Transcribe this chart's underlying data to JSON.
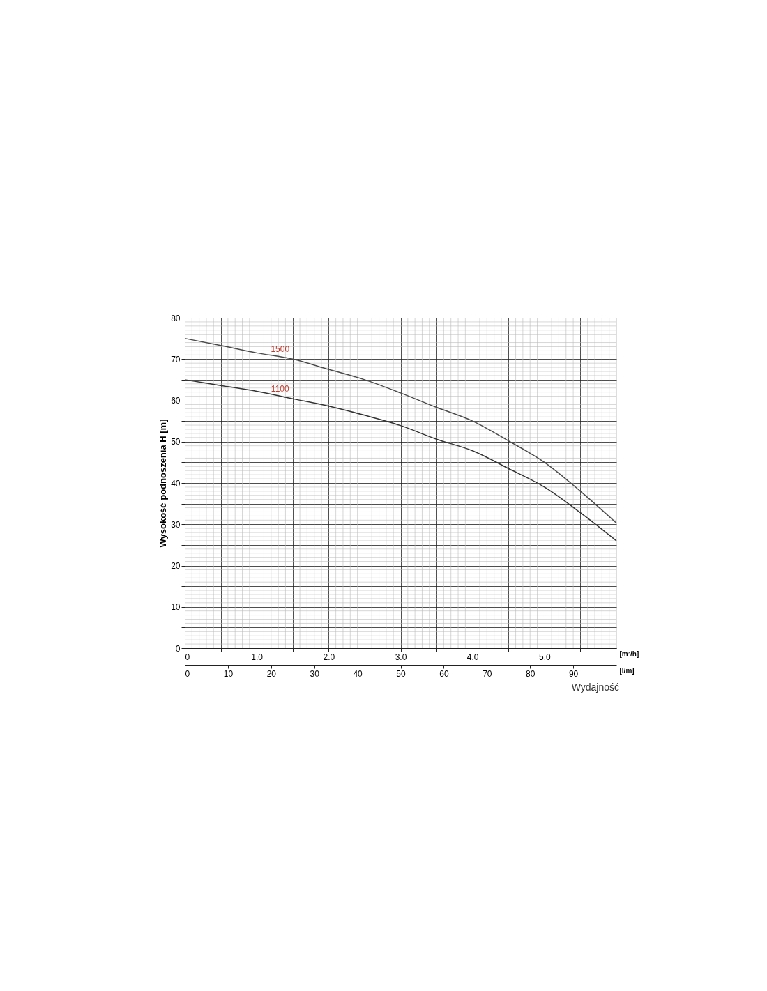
{
  "chart_data": {
    "type": "line",
    "xlabel": "[m³/h]",
    "ylabel": "Wysokość podnoszenia H [m]",
    "x2label": "[l/m]",
    "annotations": [
      "Wydajność"
    ],
    "x": [
      0,
      0.5,
      1.0,
      1.5,
      2.0,
      2.5,
      3.0,
      3.5,
      4.0,
      4.5,
      5.0,
      5.5,
      6.0
    ],
    "series": [
      {
        "name": "1500",
        "color": "#4a4a4a",
        "values": [
          75,
          73.3,
          71.5,
          70.0,
          67.5,
          65,
          61.8,
          58.3,
          55,
          50.2,
          45,
          38,
          30.3
        ]
      },
      {
        "name": "1100",
        "color": "#333333",
        "values": [
          65,
          63.6,
          62.2,
          60.4,
          58.6,
          56.4,
          53.9,
          50.6,
          47.8,
          43.5,
          39,
          32.8,
          26
        ]
      }
    ],
    "xlim": [
      0,
      6.0
    ],
    "xticks": [
      0,
      {
        "value": 0.5,
        "label": null
      },
      {
        "value": 1,
        "label": "1.0"
      },
      {
        "value": 1.5,
        "label": null
      },
      {
        "value": 2,
        "label": "2.0"
      },
      {
        "value": 2.5,
        "label": null
      },
      {
        "value": 3,
        "label": "3.0"
      },
      {
        "value": 3.5,
        "label": null
      },
      {
        "value": 4,
        "label": "4.0"
      },
      {
        "value": 4.5,
        "label": null
      },
      {
        "value": 5,
        "label": "5.0"
      },
      {
        "value": 5.5,
        "label": null
      }
    ],
    "x2lim": [
      0,
      100
    ],
    "x2ticks": [
      0,
      10,
      20,
      30,
      40,
      50,
      60,
      70,
      80,
      90
    ],
    "ylim": [
      0,
      80
    ],
    "yticks": [
      0,
      {
        "value": 5,
        "label": null
      },
      10,
      {
        "value": 15,
        "label": null
      },
      20,
      {
        "value": 25,
        "label": null
      },
      30,
      {
        "value": 35,
        "label": null
      },
      40,
      {
        "value": 45,
        "label": null
      },
      50,
      {
        "value": 55,
        "label": null
      },
      60,
      {
        "value": 65,
        "label": null
      },
      70,
      {
        "value": 75,
        "label": null
      },
      80
    ],
    "grid": true,
    "marker": "none",
    "line_style": "solid"
  }
}
